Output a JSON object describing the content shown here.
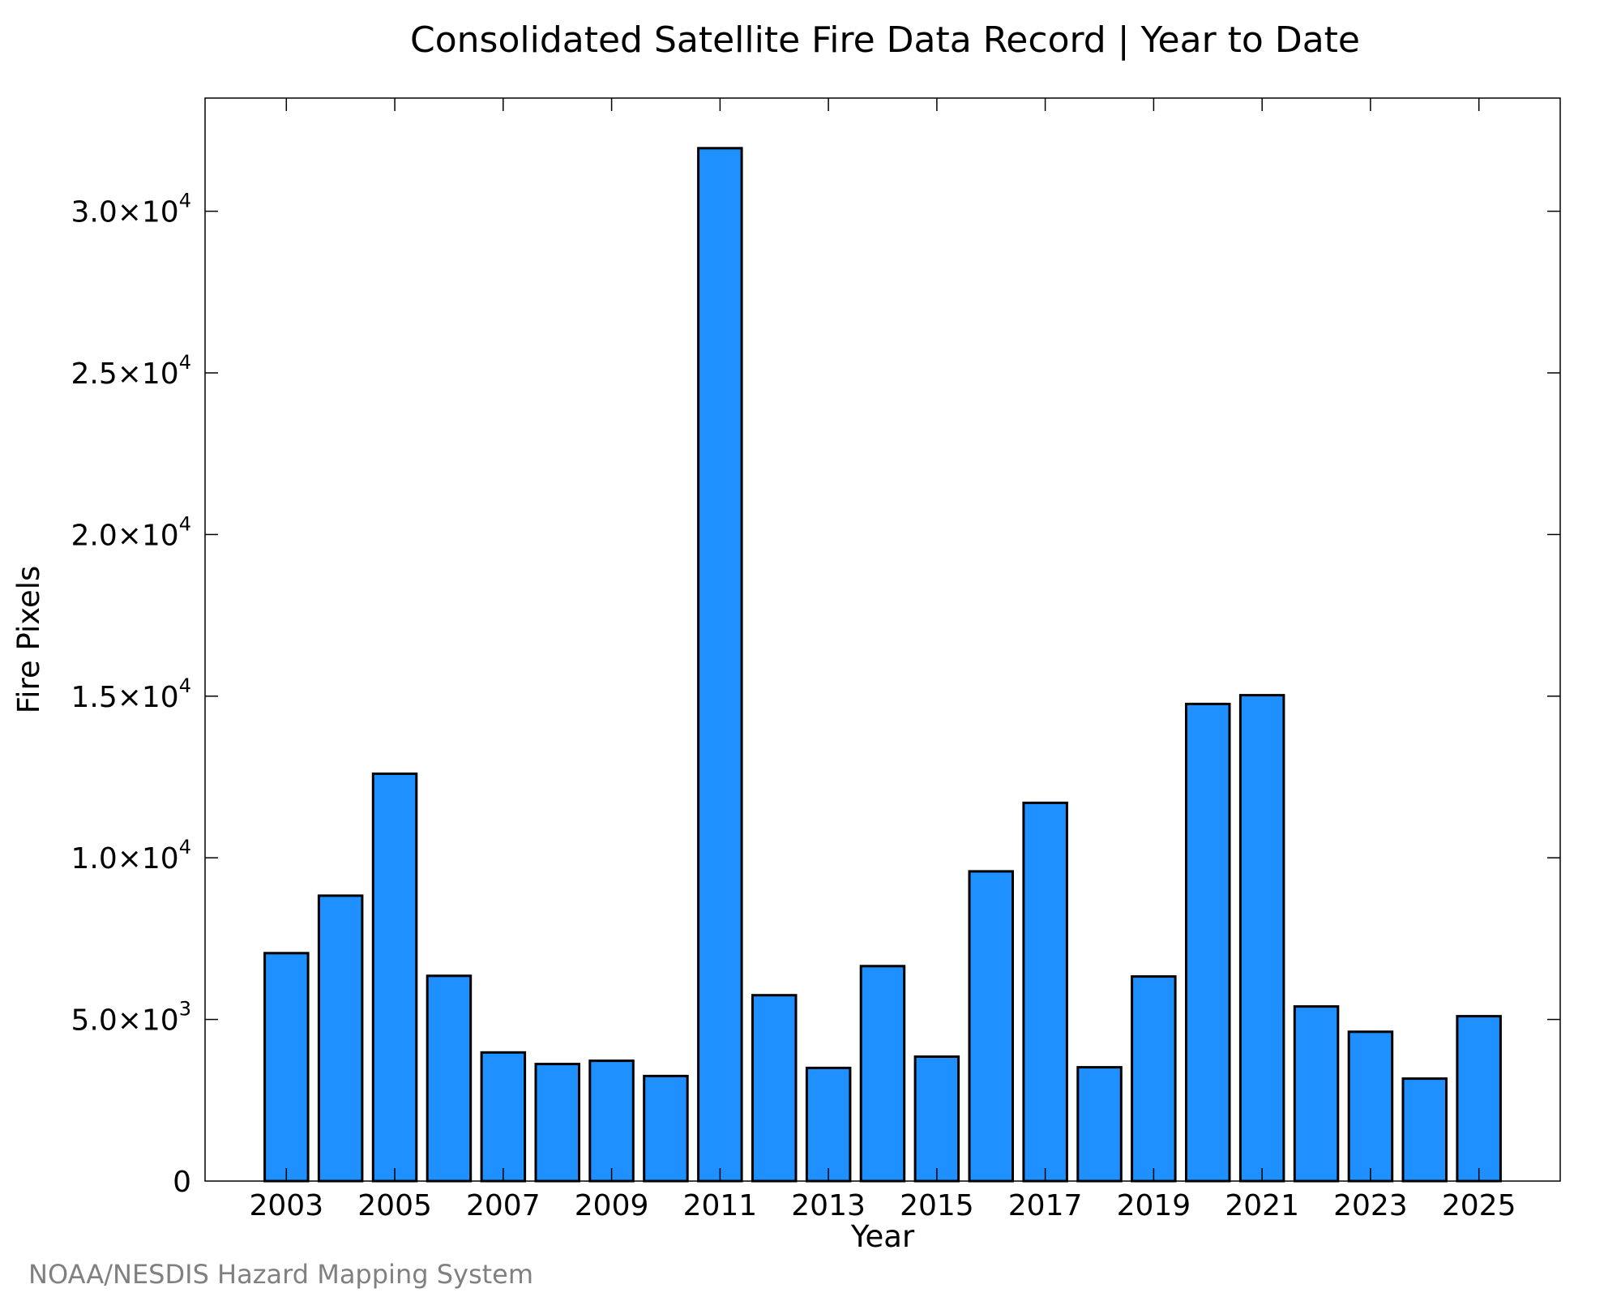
{
  "credit": "NOAA/NESDIS Hazard Mapping System",
  "colors": {
    "bar_fill": "#1e90ff",
    "bar_edge": "#000000",
    "credit_text": "#808080"
  },
  "chart_data": {
    "type": "bar",
    "title": "Consolidated Satellite Fire Data Record | Year to Date",
    "xlabel": "Year",
    "ylabel": "Fire Pixels",
    "categories": [
      2003,
      2004,
      2005,
      2006,
      2007,
      2008,
      2009,
      2010,
      2011,
      2012,
      2013,
      2014,
      2015,
      2016,
      2017,
      2018,
      2019,
      2020,
      2021,
      2022,
      2023,
      2024,
      2025
    ],
    "values": [
      7050,
      8830,
      12600,
      6350,
      3980,
      3620,
      3720,
      3250,
      31950,
      5750,
      3500,
      6650,
      3850,
      9580,
      11700,
      3520,
      6330,
      14760,
      15030,
      5400,
      4620,
      3170,
      5100
    ],
    "xlim": [
      2001.5,
      2026.5
    ],
    "ylim": [
      0,
      33500
    ],
    "x_tick_labels": [
      "2003",
      "2005",
      "2007",
      "2009",
      "2011",
      "2013",
      "2015",
      "2017",
      "2019",
      "2021",
      "2023",
      "2025"
    ],
    "y_ticks": [
      {
        "value": 0,
        "mantissa": "0",
        "exponent": ""
      },
      {
        "value": 5000,
        "mantissa": "5.0×10",
        "exponent": "3"
      },
      {
        "value": 10000,
        "mantissa": "1.0×10",
        "exponent": "4"
      },
      {
        "value": 15000,
        "mantissa": "1.5×10",
        "exponent": "4"
      },
      {
        "value": 20000,
        "mantissa": "2.0×10",
        "exponent": "4"
      },
      {
        "value": 25000,
        "mantissa": "2.5×10",
        "exponent": "4"
      },
      {
        "value": 30000,
        "mantissa": "3.0×10",
        "exponent": "4"
      }
    ],
    "grid": false,
    "legend": "none"
  }
}
